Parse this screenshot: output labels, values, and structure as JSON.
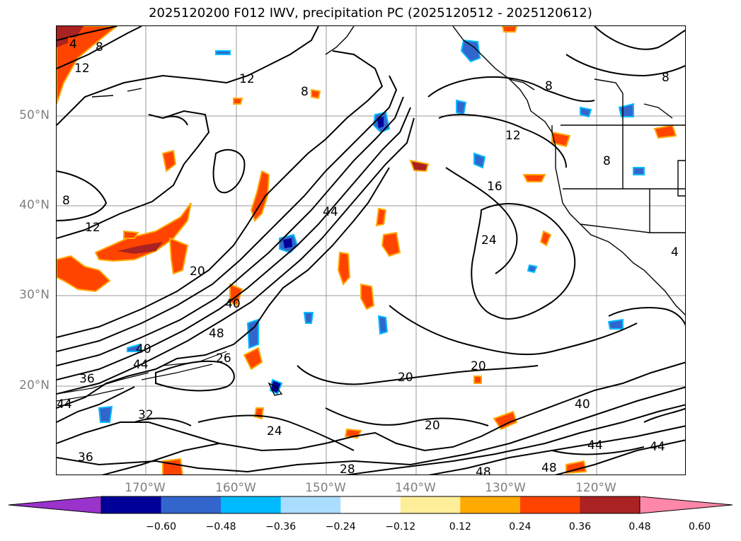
{
  "title": "2025120200 F012 IWV, precipitation PC (2025120512 - 2025120612)",
  "lat_labels": [
    "50°N",
    "40°N",
    "30°N",
    "20°N"
  ],
  "lon_labels": [
    "170°W",
    "160°W",
    "150°W",
    "140°W",
    "130°W",
    "120°W"
  ],
  "contour_labels": [
    "4",
    "8",
    "12",
    "12",
    "8",
    "8",
    "8",
    "8",
    "12",
    "16",
    "8",
    "12",
    "24",
    "44",
    "20",
    "40",
    "48",
    "40",
    "44",
    "36",
    "44",
    "32",
    "26",
    "20",
    "20",
    "20",
    "24",
    "28",
    "36",
    "40",
    "44",
    "44",
    "48",
    "48",
    "4"
  ],
  "colorbar": {
    "ticks": [
      "−0.60",
      "−0.48",
      "−0.36",
      "−0.24",
      "−0.12",
      "0.12",
      "0.24",
      "0.36",
      "0.48",
      "0.60"
    ],
    "colors": [
      "#9933cc",
      "#000099",
      "#3366cc",
      "#00bbff",
      "#aaddff",
      "#ffffff",
      "#ffee99",
      "#ffaa00",
      "#ff4400",
      "#aa2222",
      "#ff88aa"
    ]
  }
}
